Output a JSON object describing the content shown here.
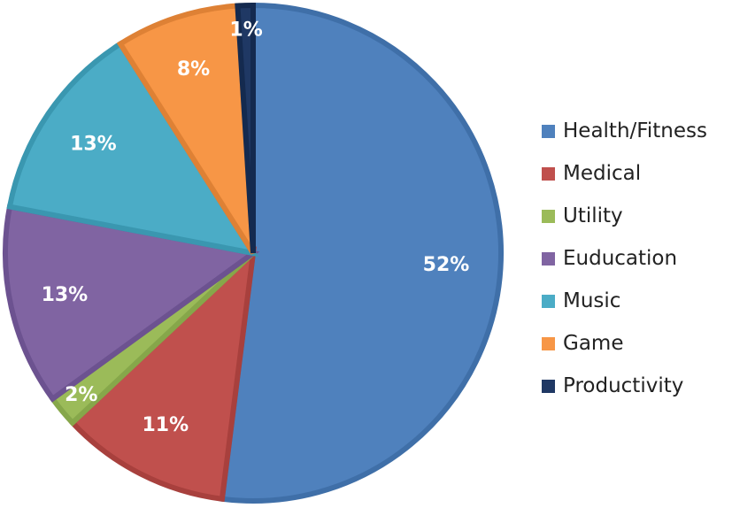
{
  "chart_data": {
    "type": "pie",
    "categories": [
      "Health/Fitness",
      "Medical",
      "Utility",
      "Euducation",
      "Music",
      "Game",
      "Productivity"
    ],
    "values": [
      52,
      11,
      2,
      13,
      13,
      8,
      1
    ],
    "labels": [
      "52%",
      "11%",
      "2%",
      "13%",
      "13%",
      "8%",
      "1%"
    ],
    "colors": [
      "#4f81bd",
      "#c0504d",
      "#9bbb59",
      "#8064a2",
      "#4bacc6",
      "#f79646",
      "#1f3864"
    ],
    "border_colors": [
      "#3f6fa8",
      "#a8403d",
      "#86a74a",
      "#6c5290",
      "#3a97b0",
      "#de8135",
      "#142a4f"
    ],
    "legend_position": "right",
    "title": ""
  }
}
